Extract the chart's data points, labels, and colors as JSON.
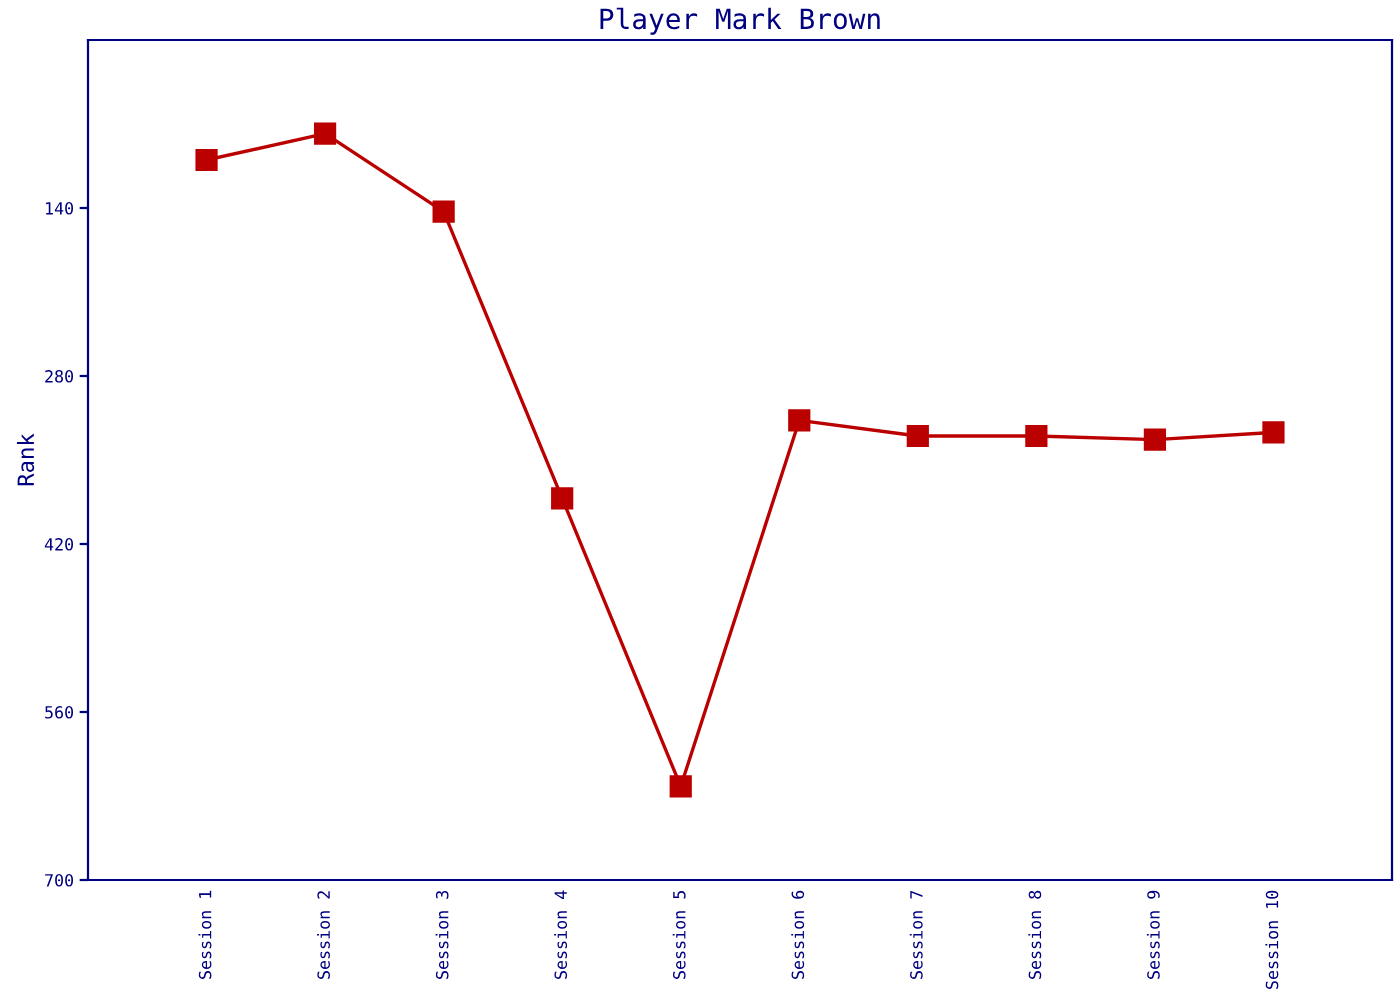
{
  "chart_data": {
    "type": "line",
    "title": "Player Mark Brown",
    "ylabel": "Rank",
    "categories": [
      "Session 1",
      "Session 2",
      "Session 3",
      "Session 4",
      "Session 5",
      "Session 6",
      "Session 7",
      "Session 8",
      "Session 9",
      "Session 10"
    ],
    "series": [
      {
        "color": "#bb0000",
        "values": [
          100,
          78,
          143,
          382,
          622,
          317,
          330,
          330,
          333,
          327
        ]
      }
    ],
    "ylim": [
      700,
      0
    ],
    "yticks": [
      140,
      280,
      420,
      560,
      700
    ],
    "marker": "square",
    "line_style": "solid",
    "grid": false,
    "legend": false
  }
}
